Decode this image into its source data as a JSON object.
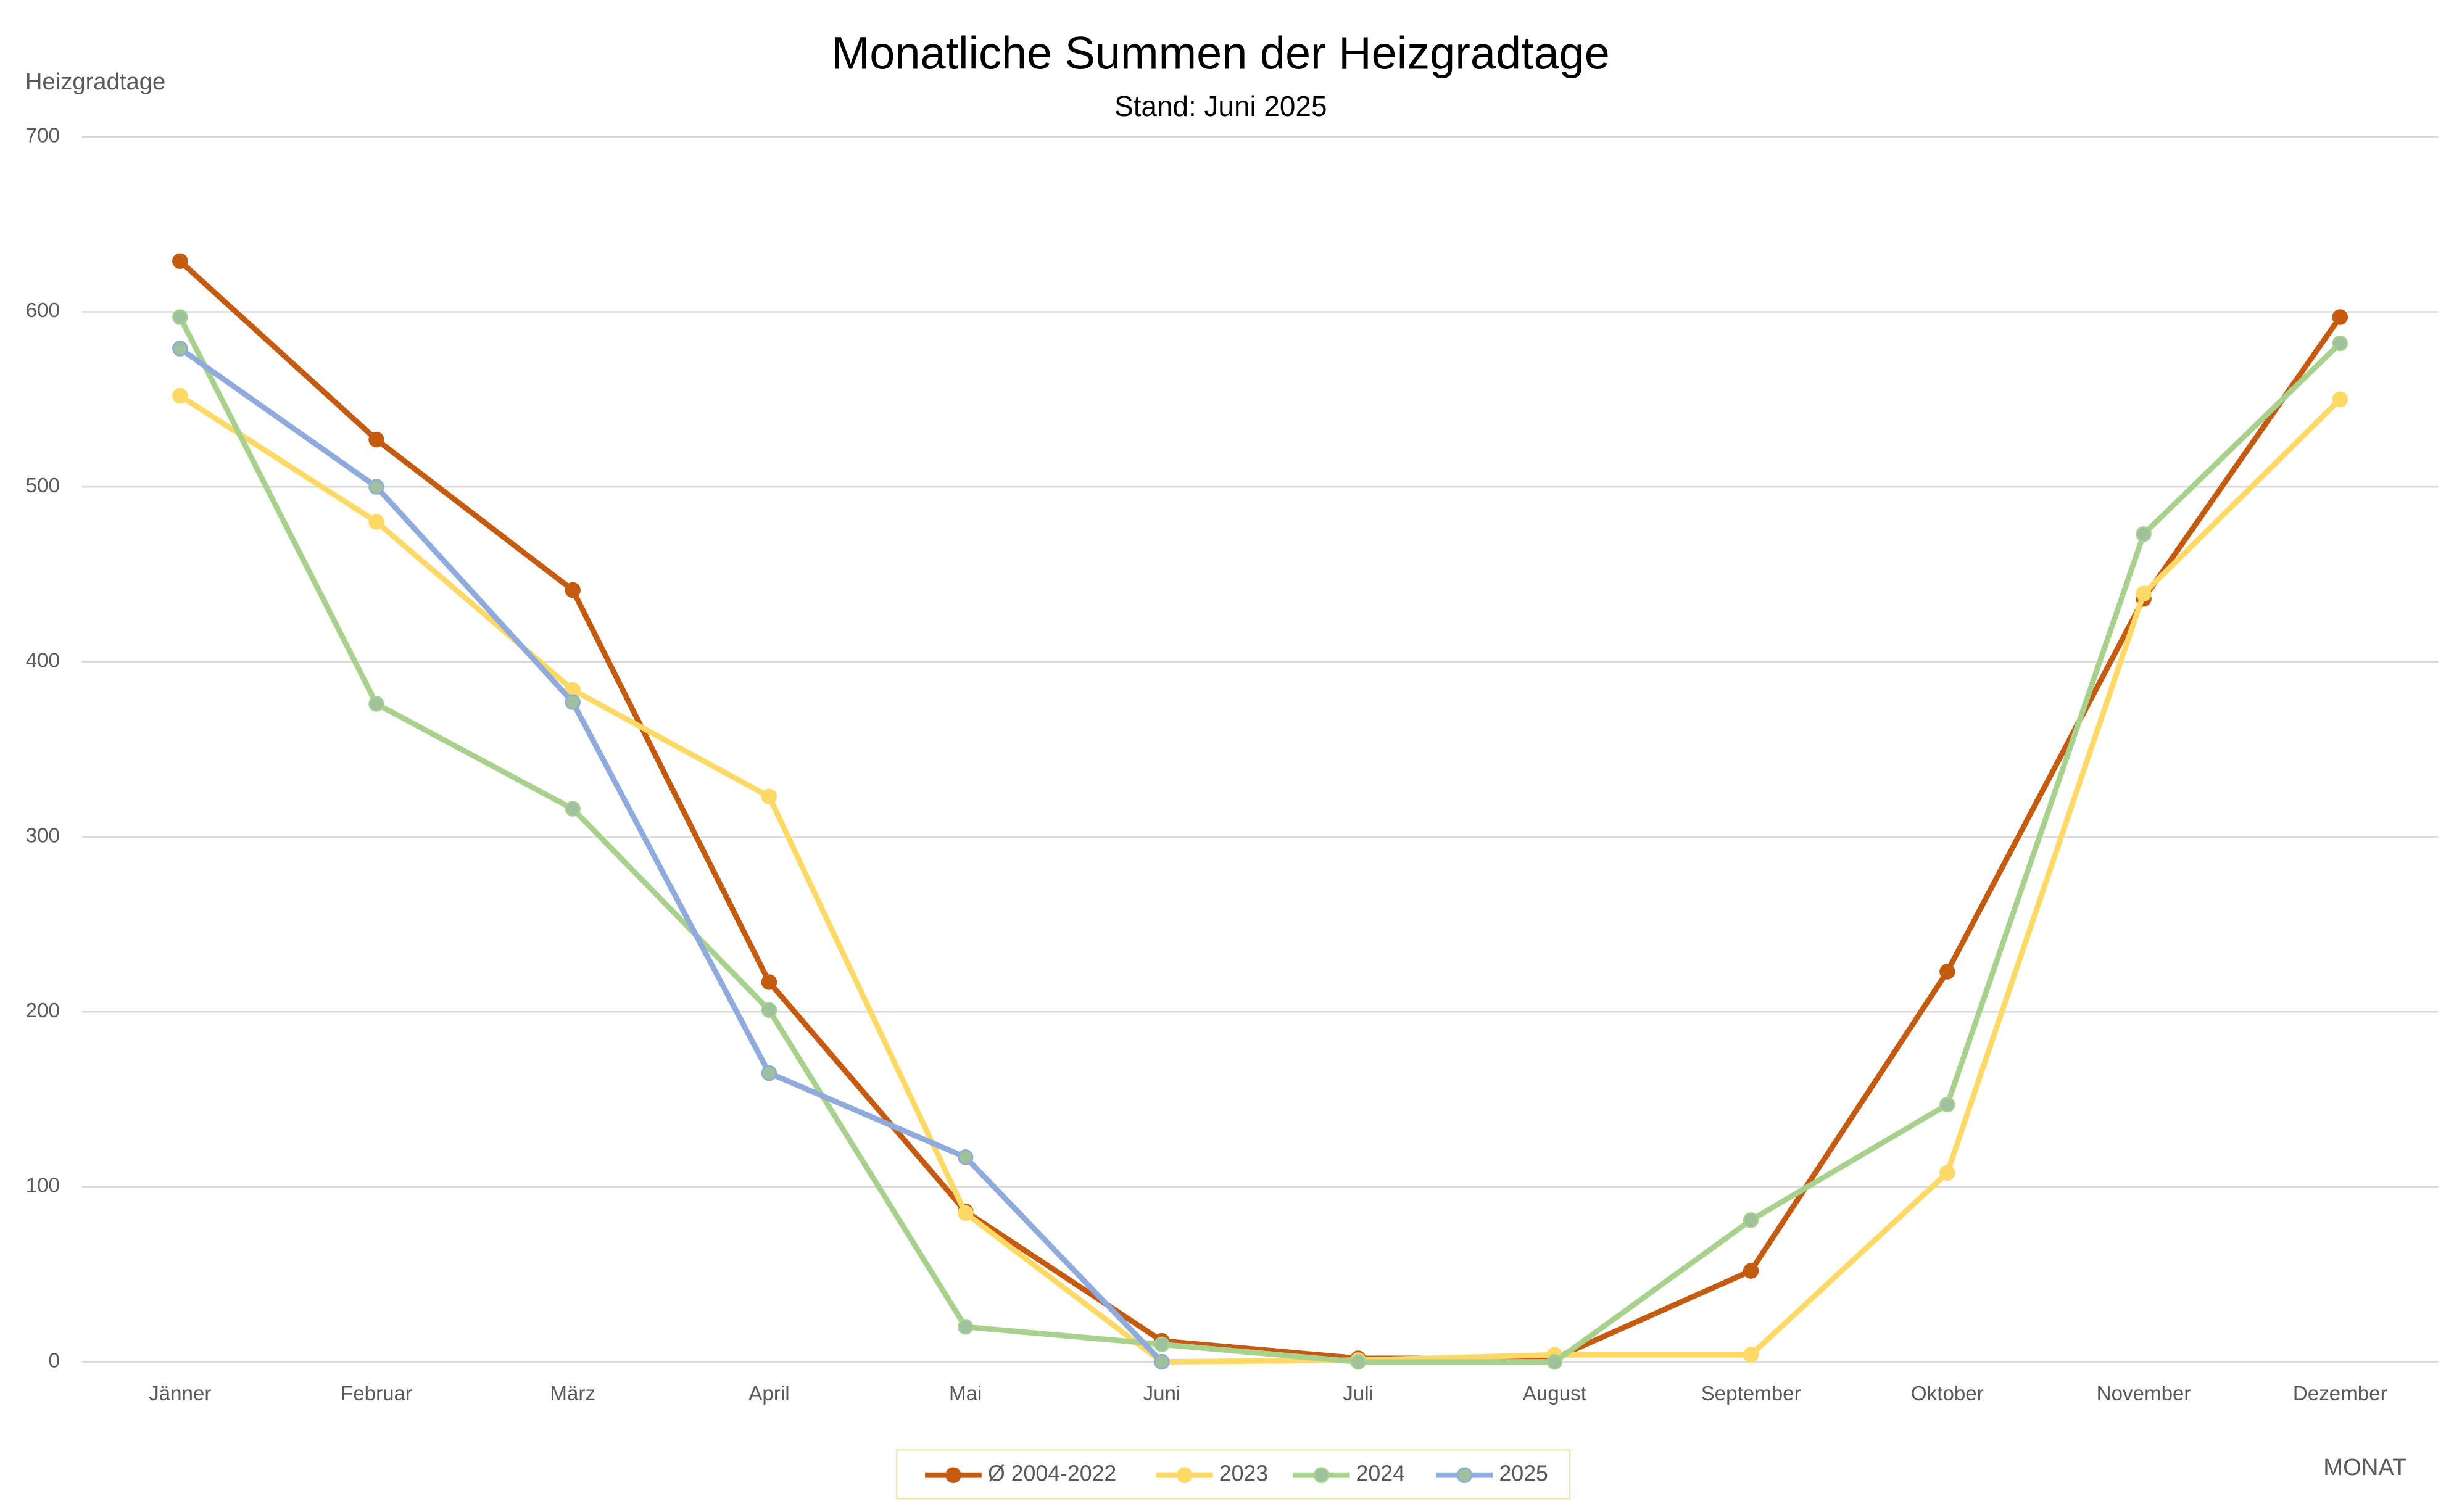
{
  "chart_data": {
    "type": "line",
    "title": "Monatliche Summen der Heizgradtage",
    "subtitle": "Stand: Juni 2025",
    "y_label": "Heizgradtage",
    "x_label": "MONAT",
    "categories": [
      "Jänner",
      "Februar",
      "März",
      "April",
      "Mai",
      "Juni",
      "Juli",
      "August",
      "September",
      "Oktober",
      "November",
      "Dezember"
    ],
    "series": [
      {
        "name": "Ø 2004-2022",
        "color": "#c55a11",
        "marker_color": "#c55a11",
        "values": [
          629,
          527,
          441,
          217,
          86,
          12,
          2,
          2,
          52,
          223,
          436,
          597
        ]
      },
      {
        "name": "2023",
        "color": "#ffd966",
        "marker_color": "#ffd966",
        "values": [
          552,
          480,
          384,
          323,
          85,
          0,
          1,
          4,
          4,
          108,
          439,
          550
        ]
      },
      {
        "name": "2024",
        "color": "#a9d18e",
        "marker_color": "#9fc29c",
        "values": [
          597,
          376,
          316,
          201,
          20,
          10,
          0,
          0,
          81,
          147,
          473,
          582
        ]
      },
      {
        "name": "2025",
        "color": "#8faadc",
        "marker_color": "#9fc29c",
        "values": [
          579,
          500,
          377,
          165,
          117,
          0,
          null,
          null,
          null,
          null,
          null,
          null
        ]
      }
    ],
    "ylim": [
      0,
      700
    ],
    "yticks": [
      0,
      100,
      200,
      300,
      400,
      500,
      600,
      700
    ],
    "grid": true,
    "legend": "bottom"
  }
}
